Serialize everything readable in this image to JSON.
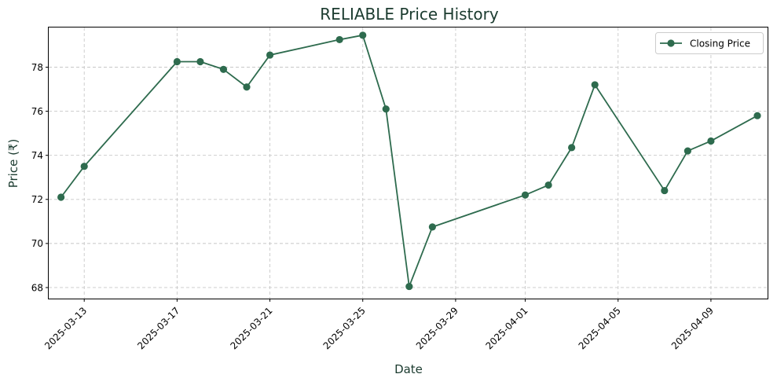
{
  "chart_data": {
    "type": "line",
    "title": "RELIABLE Price History",
    "xlabel": "Date",
    "ylabel": "Price (₹)",
    "x_axis_type": "date",
    "xlim": [
      "2025-03-10",
      "2025-04-12"
    ],
    "ylim": [
      67.5,
      79.8
    ],
    "yticks": [
      68,
      70,
      72,
      74,
      76,
      78
    ],
    "xtick_labels": [
      "2025-03-13",
      "2025-03-17",
      "2025-03-21",
      "2025-03-25",
      "2025-03-29",
      "2025-04-01",
      "2025-04-05",
      "2025-04-09"
    ],
    "grid": true,
    "legend": "top-right",
    "series": [
      {
        "name": "Closing Price",
        "color": "#2e6b4e",
        "marker": "circle",
        "points": [
          {
            "x": "2025-03-12",
            "y": 72.1
          },
          {
            "x": "2025-03-13",
            "y": 73.5
          },
          {
            "x": "2025-03-17",
            "y": 78.25
          },
          {
            "x": "2025-03-18",
            "y": 78.25
          },
          {
            "x": "2025-03-19",
            "y": 77.9
          },
          {
            "x": "2025-03-20",
            "y": 77.1
          },
          {
            "x": "2025-03-21",
            "y": 78.55
          },
          {
            "x": "2025-03-24",
            "y": 79.25
          },
          {
            "x": "2025-03-25",
            "y": 79.45
          },
          {
            "x": "2025-03-26",
            "y": 76.1
          },
          {
            "x": "2025-03-27",
            "y": 68.05
          },
          {
            "x": "2025-03-28",
            "y": 70.75
          },
          {
            "x": "2025-04-01",
            "y": 72.2
          },
          {
            "x": "2025-04-02",
            "y": 72.65
          },
          {
            "x": "2025-04-03",
            "y": 74.35
          },
          {
            "x": "2025-04-04",
            "y": 77.2
          },
          {
            "x": "2025-04-07",
            "y": 72.4
          },
          {
            "x": "2025-04-08",
            "y": 74.2
          },
          {
            "x": "2025-04-09",
            "y": 74.65
          },
          {
            "x": "2025-04-11",
            "y": 75.8
          }
        ]
      }
    ]
  }
}
